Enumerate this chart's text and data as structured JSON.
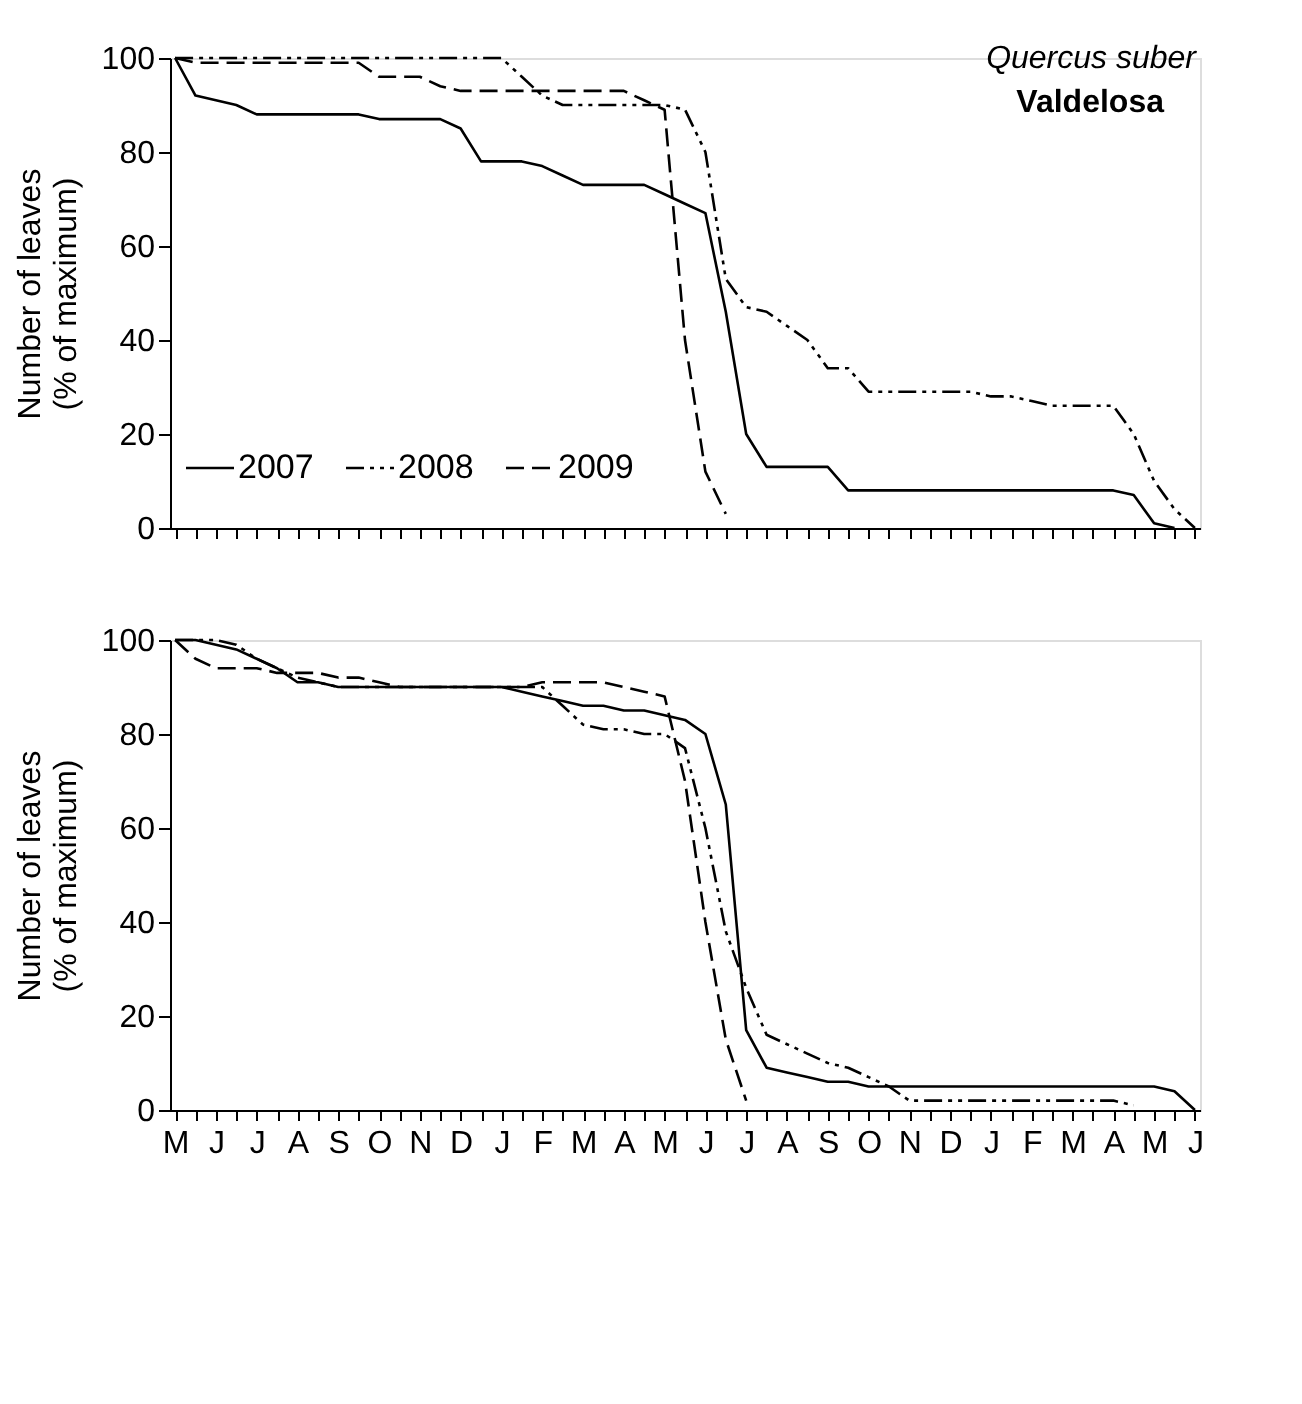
{
  "chart_data": [
    {
      "type": "line",
      "title": "Quercus suber",
      "subtitle": "Valdelosa",
      "ylabel": "Number of leaves (% of maximum)",
      "ylim": [
        0,
        100
      ],
      "yticks": [
        0,
        20,
        40,
        60,
        80,
        100
      ],
      "categories": [
        null,
        null,
        null,
        null,
        null,
        null,
        null,
        null,
        null,
        null,
        null,
        null,
        null,
        null,
        null,
        null,
        null,
        null,
        null,
        null,
        null,
        null,
        null,
        null,
        null,
        null,
        null,
        null,
        null,
        null,
        null,
        null,
        null,
        null,
        null,
        null,
        null,
        null,
        null,
        null,
        null,
        null,
        null,
        null,
        null,
        null,
        null,
        null,
        null,
        null,
        null
      ],
      "legend": "bottom left",
      "grid": false,
      "series": [
        {
          "name": "2007",
          "color": "#000000",
          "line_style": "solid",
          "values": [
            100,
            92,
            91,
            90,
            88,
            88,
            88,
            88,
            88,
            88,
            87,
            87,
            87,
            87,
            85,
            78,
            78,
            78,
            77,
            75,
            73,
            73,
            73,
            73,
            71,
            69,
            67,
            46,
            20,
            13,
            13,
            13,
            13,
            8,
            8,
            8,
            8,
            8,
            8,
            8,
            8,
            8,
            8,
            8,
            8,
            8,
            8,
            7,
            1,
            0,
            null
          ]
        },
        {
          "name": "2008",
          "color": "#000000",
          "line_style": "dashdot",
          "values": [
            100,
            100,
            100,
            100,
            100,
            100,
            100,
            100,
            100,
            100,
            100,
            100,
            100,
            100,
            100,
            100,
            100,
            96,
            92,
            90,
            90,
            90,
            90,
            90,
            90,
            89,
            80,
            53,
            47,
            46,
            43,
            40,
            34,
            34,
            29,
            29,
            29,
            29,
            29,
            29,
            28,
            28,
            27,
            26,
            26,
            26,
            26,
            20,
            10,
            4,
            0
          ]
        },
        {
          "name": "2009",
          "color": "#000000",
          "line_style": "dashed",
          "values": [
            100,
            99,
            99,
            99,
            99,
            99,
            99,
            99,
            99,
            99,
            96,
            96,
            96,
            94,
            93,
            93,
            93,
            93,
            93,
            93,
            93,
            93,
            93,
            91,
            89,
            40,
            12,
            3,
            null,
            null,
            null,
            null,
            null,
            null,
            null,
            null,
            null,
            null,
            null,
            null,
            null,
            null,
            null,
            null,
            null,
            null,
            null,
            null,
            null,
            null,
            null
          ]
        }
      ]
    },
    {
      "type": "line",
      "ylabel": "Number of leaves (% of maximum)",
      "ylim": [
        0,
        100
      ],
      "yticks": [
        0,
        20,
        40,
        60,
        80,
        100
      ],
      "categories": [
        "M",
        null,
        "J",
        null,
        "J",
        null,
        "A",
        null,
        "S",
        null,
        "O",
        null,
        "N",
        null,
        "D",
        null,
        "J",
        null,
        "F",
        null,
        "M",
        null,
        "A",
        null,
        "M",
        null,
        "J",
        null,
        "J",
        null,
        "A",
        null,
        "S",
        null,
        "O",
        null,
        "N",
        null,
        "D",
        null,
        "J",
        null,
        "F",
        null,
        "M",
        null,
        "A",
        null,
        "M",
        null,
        "J"
      ],
      "grid": false,
      "series": [
        {
          "color": "#000000",
          "line_style": "solid",
          "values": [
            100,
            100,
            99,
            98,
            96,
            94,
            91,
            91,
            90,
            90,
            90,
            90,
            90,
            90,
            90,
            90,
            90,
            89,
            88,
            87,
            86,
            86,
            85,
            85,
            84,
            83,
            80,
            65,
            17,
            9,
            8,
            7,
            6,
            6,
            5,
            5,
            5,
            5,
            5,
            5,
            5,
            5,
            5,
            5,
            5,
            5,
            5,
            5,
            5,
            4,
            0
          ]
        },
        {
          "color": "#000000",
          "line_style": "dashdot",
          "values": [
            100,
            100,
            100,
            99,
            96,
            94,
            92,
            91,
            90,
            90,
            90,
            90,
            90,
            90,
            90,
            90,
            90,
            90,
            90,
            86,
            82,
            81,
            81,
            80,
            80,
            77,
            60,
            38,
            26,
            16,
            14,
            12,
            10,
            9,
            7,
            5,
            2,
            2,
            2,
            2,
            2,
            2,
            2,
            2,
            2,
            2,
            2,
            1,
            null,
            null,
            null
          ]
        },
        {
          "color": "#000000",
          "line_style": "dashed",
          "values": [
            100,
            96,
            94,
            94,
            94,
            93,
            93,
            93,
            92,
            92,
            91,
            90,
            90,
            90,
            90,
            90,
            90,
            90,
            91,
            91,
            91,
            91,
            90,
            89,
            88,
            70,
            40,
            15,
            2,
            null,
            null,
            null,
            null,
            null,
            null,
            null,
            null,
            null,
            null,
            null,
            null,
            null,
            null,
            null,
            null,
            null,
            null,
            null,
            null,
            null,
            null
          ]
        }
      ]
    }
  ]
}
